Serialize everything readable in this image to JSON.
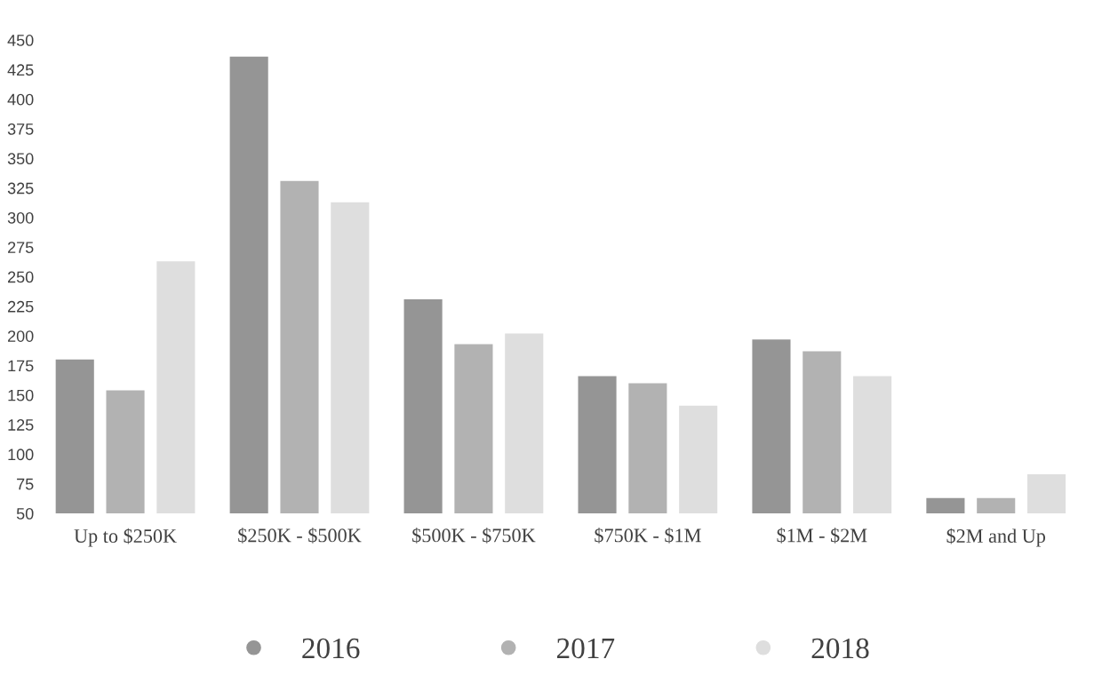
{
  "chart_data": {
    "type": "bar",
    "categories": [
      "Up to $250K",
      "$250K - $500K",
      "$500K - $750K",
      "$750K - $1M",
      "$1M - $2M",
      "$2M and Up"
    ],
    "series": [
      {
        "name": "2016",
        "color": "#959595",
        "values": [
          180,
          436,
          231,
          166,
          197,
          63
        ]
      },
      {
        "name": "2017",
        "color": "#b2b2b2",
        "values": [
          154,
          331,
          193,
          160,
          187,
          63
        ]
      },
      {
        "name": "2018",
        "color": "#dedede",
        "values": [
          263,
          313,
          202,
          141,
          166,
          83
        ]
      }
    ],
    "ylim": [
      50,
      450
    ],
    "yticks": [
      50,
      75,
      100,
      125,
      150,
      175,
      200,
      225,
      250,
      275,
      300,
      325,
      350,
      375,
      400,
      425,
      450
    ],
    "grid": false,
    "legend": "bottom"
  }
}
